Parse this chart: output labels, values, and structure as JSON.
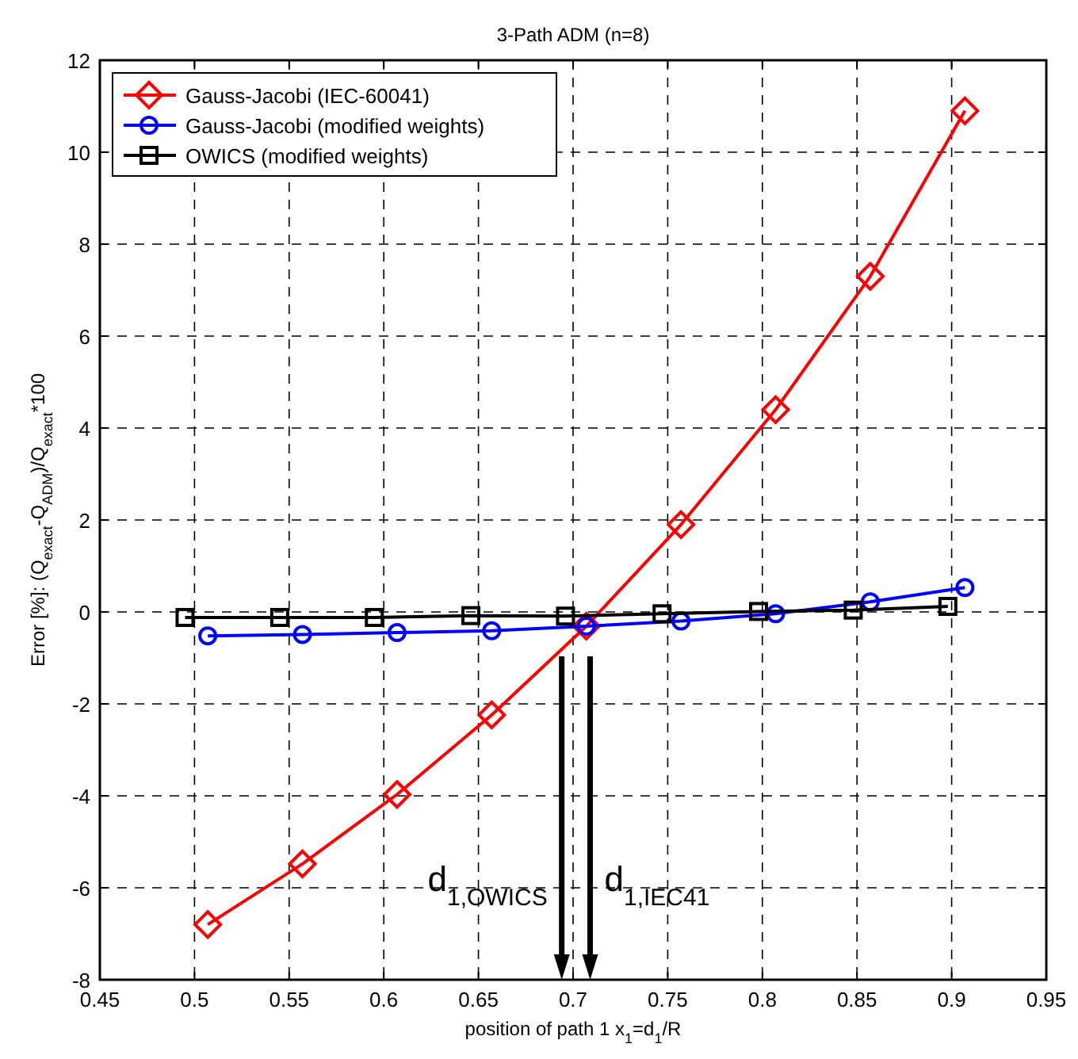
{
  "chart_data": {
    "type": "line",
    "title": "3-Path ADM (n=8)",
    "xlabel": "position of path 1 x$_{1}$=d$_{1}$/R",
    "ylabel": "Error [%]: (Q$_{exact}$-Q$_{ADM}$)/Q$_{exact}$*100",
    "xlim": [
      0.45,
      0.95
    ],
    "xticks": [
      0.45,
      0.5,
      0.55,
      0.6,
      0.65,
      0.7,
      0.75,
      0.8,
      0.85,
      0.9,
      0.95
    ],
    "ylim": [
      -8,
      12
    ],
    "yticks": [
      -8,
      -6,
      -4,
      -2,
      0,
      2,
      4,
      6,
      8,
      10,
      12
    ],
    "grid": true,
    "legend": "top left",
    "line_style": "solid",
    "series": [
      {
        "name": "Gauss-Jacobi (IEC-60041)",
        "color": "#ff0000",
        "marker": "diamond",
        "x": [
          0.507,
          0.557,
          0.607,
          0.657,
          0.707,
          0.757,
          0.807,
          0.857,
          0.907
        ],
        "values": [
          -6.8,
          -5.48,
          -3.97,
          -2.24,
          -0.31,
          1.9,
          4.4,
          7.3,
          10.9
        ]
      },
      {
        "name": "Gauss-Jacobi (modified weights)",
        "color": "#0000ff",
        "marker": "circle",
        "x": [
          0.507,
          0.557,
          0.607,
          0.657,
          0.707,
          0.757,
          0.807,
          0.857,
          0.907
        ],
        "values": [
          -0.52,
          -0.49,
          -0.45,
          -0.41,
          -0.31,
          -0.2,
          -0.04,
          0.22,
          0.53
        ]
      },
      {
        "name": "OWICS (modified weights)",
        "color": "#000000",
        "marker": "square",
        "x": [
          0.495,
          0.545,
          0.595,
          0.646,
          0.696,
          0.747,
          0.798,
          0.848,
          0.898
        ],
        "values": [
          -0.12,
          -0.12,
          -0.12,
          -0.08,
          -0.09,
          -0.04,
          0.01,
          0.04,
          0.12
        ]
      }
    ],
    "ref_lines": [
      {
        "axis": "x",
        "value": 0.694,
        "label": "d$_{1,OWICS}$"
      },
      {
        "axis": "x",
        "value": 0.709,
        "label": "d$_{1,IEC41}$"
      }
    ]
  }
}
